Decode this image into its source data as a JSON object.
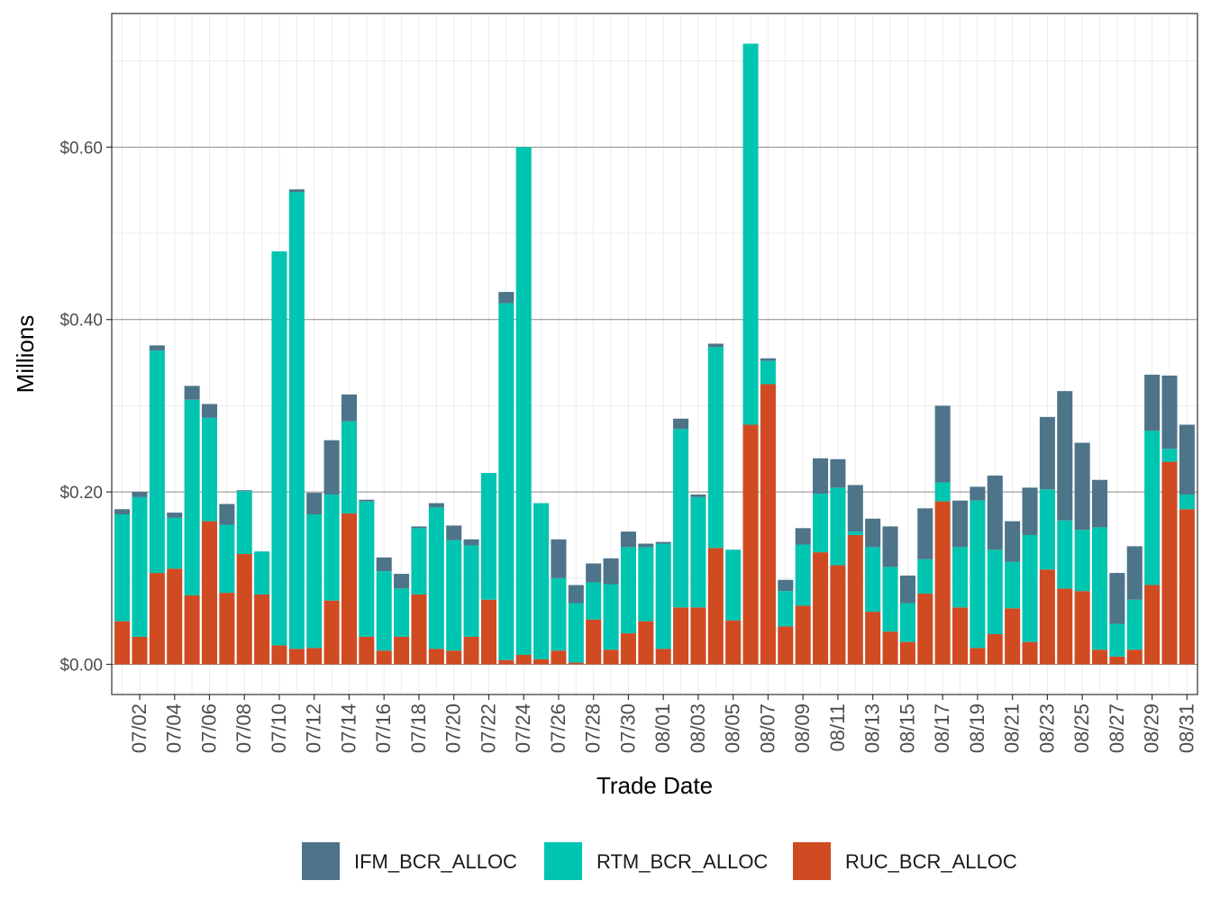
{
  "chart_data": {
    "type": "bar",
    "stacked": true,
    "xlabel": "Trade Date",
    "ylabel": "Millions",
    "ylim": [
      -0.035,
      0.755
    ],
    "y_ticks": [
      0.0,
      0.2,
      0.4,
      0.6
    ],
    "y_tick_labels": [
      "$0.00",
      "$0.20",
      "$0.40",
      "$0.60"
    ],
    "grid": true,
    "legend_position": "bottom",
    "categories": [
      "07/01",
      "07/02",
      "07/03",
      "07/04",
      "07/05",
      "07/06",
      "07/07",
      "07/08",
      "07/09",
      "07/10",
      "07/11",
      "07/12",
      "07/13",
      "07/14",
      "07/15",
      "07/16",
      "07/17",
      "07/18",
      "07/19",
      "07/20",
      "07/21",
      "07/22",
      "07/23",
      "07/24",
      "07/25",
      "07/26",
      "07/27",
      "07/28",
      "07/29",
      "07/30",
      "07/31",
      "08/01",
      "08/02",
      "08/03",
      "08/04",
      "08/05",
      "08/06",
      "08/07",
      "08/08",
      "08/09",
      "08/10",
      "08/11",
      "08/12",
      "08/13",
      "08/14",
      "08/15",
      "08/16",
      "08/17",
      "08/18",
      "08/19",
      "08/20",
      "08/21",
      "08/22",
      "08/23",
      "08/24",
      "08/25",
      "08/26",
      "08/27",
      "08/28",
      "08/29",
      "08/30",
      "08/31"
    ],
    "x_tick_labels": [
      "07/02",
      "07/04",
      "07/06",
      "07/08",
      "07/10",
      "07/12",
      "07/14",
      "07/16",
      "07/18",
      "07/20",
      "07/22",
      "07/24",
      "07/26",
      "07/28",
      "07/30",
      "08/01",
      "08/03",
      "08/05",
      "08/07",
      "08/09",
      "08/11",
      "08/13",
      "08/15",
      "08/17",
      "08/19",
      "08/21",
      "08/23",
      "08/25",
      "08/27",
      "08/29",
      "08/31"
    ],
    "series": [
      {
        "name": "RUC_BCR_ALLOC",
        "color": "#d04a22",
        "values": [
          0.05,
          0.032,
          0.106,
          0.111,
          0.08,
          0.166,
          0.083,
          0.128,
          0.081,
          0.022,
          0.018,
          0.019,
          0.074,
          0.175,
          0.032,
          0.016,
          0.032,
          0.081,
          0.018,
          0.016,
          0.032,
          0.075,
          0.005,
          0.011,
          0.006,
          0.016,
          0.002,
          0.052,
          0.017,
          0.036,
          0.05,
          0.018,
          0.066,
          0.066,
          0.135,
          0.051,
          0.278,
          0.325,
          0.044,
          0.068,
          0.13,
          0.115,
          0.15,
          0.061,
          0.038,
          0.026,
          0.082,
          0.189,
          0.066,
          0.019,
          0.035,
          0.065,
          0.026,
          0.11,
          0.088,
          0.085,
          0.017,
          0.009,
          0.017,
          0.092,
          0.235,
          0.18
        ]
      },
      {
        "name": "RTM_BCR_ALLOC",
        "color": "#00c5b0",
        "values": [
          0.124,
          0.162,
          0.258,
          0.059,
          0.227,
          0.12,
          0.079,
          0.073,
          0.05,
          0.457,
          0.53,
          0.155,
          0.123,
          0.107,
          0.157,
          0.092,
          0.056,
          0.077,
          0.164,
          0.128,
          0.106,
          0.147,
          0.414,
          0.589,
          0.181,
          0.084,
          0.069,
          0.043,
          0.076,
          0.1,
          0.086,
          0.122,
          0.207,
          0.128,
          0.233,
          0.082,
          0.442,
          0.027,
          0.041,
          0.071,
          0.068,
          0.09,
          0.004,
          0.075,
          0.075,
          0.045,
          0.04,
          0.022,
          0.07,
          0.171,
          0.098,
          0.054,
          0.124,
          0.093,
          0.079,
          0.071,
          0.142,
          0.038,
          0.058,
          0.179,
          0.015,
          0.017
        ]
      },
      {
        "name": "IFM_BCR_ALLOC",
        "color": "#4d7489",
        "values": [
          0.006,
          0.006,
          0.006,
          0.006,
          0.016,
          0.016,
          0.024,
          0.001,
          0.0,
          0.0,
          0.003,
          0.025,
          0.063,
          0.031,
          0.002,
          0.016,
          0.017,
          0.002,
          0.005,
          0.017,
          0.007,
          0.0,
          0.013,
          0.0,
          0.0,
          0.045,
          0.021,
          0.022,
          0.03,
          0.018,
          0.004,
          0.002,
          0.012,
          0.003,
          0.004,
          0.0,
          0.0,
          0.003,
          0.013,
          0.019,
          0.041,
          0.033,
          0.054,
          0.033,
          0.047,
          0.032,
          0.059,
          0.089,
          0.054,
          0.016,
          0.086,
          0.047,
          0.055,
          0.084,
          0.15,
          0.101,
          0.055,
          0.059,
          0.062,
          0.065,
          0.085,
          0.081
        ]
      }
    ]
  }
}
